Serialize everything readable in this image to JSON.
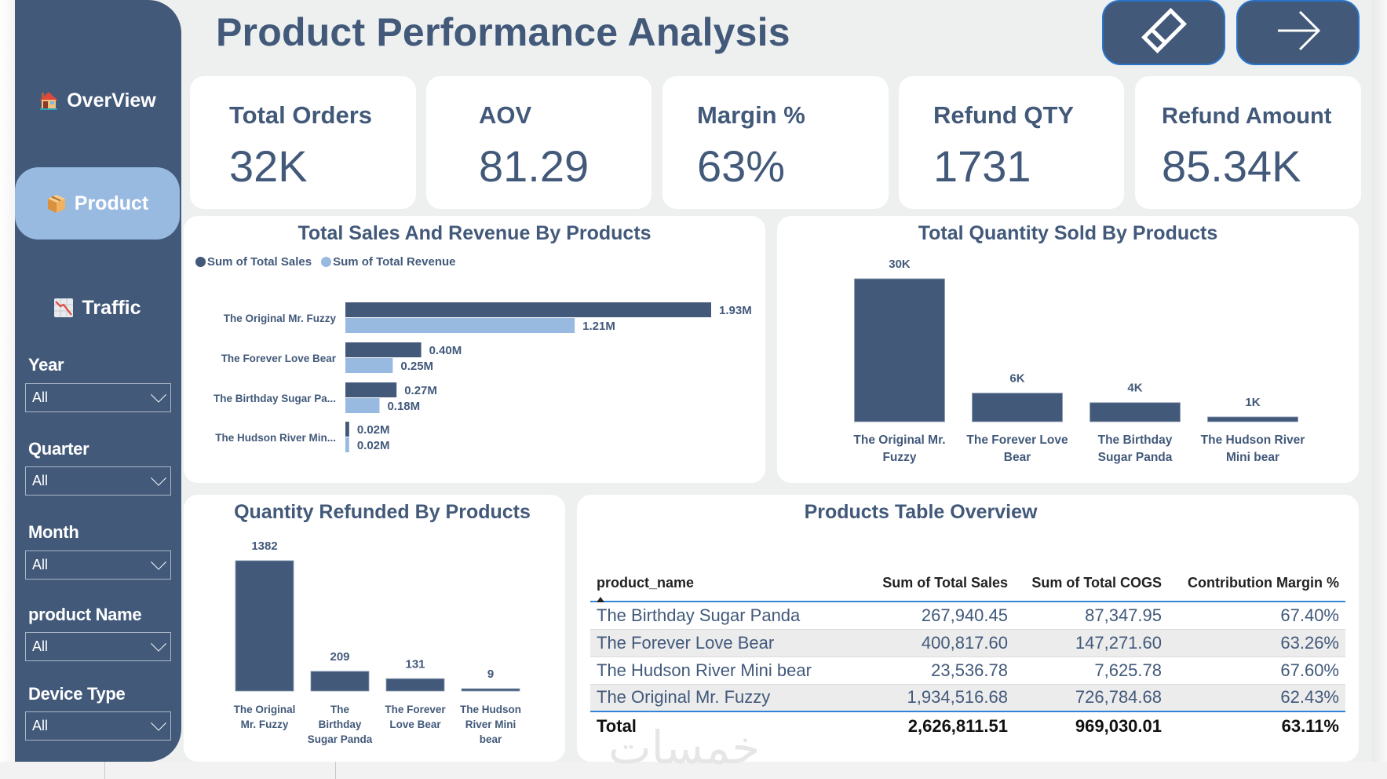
{
  "page": {
    "title": "Product Performance Analysis",
    "watermark": "خمسات"
  },
  "colors": {
    "primary": "#42597a",
    "accent_light": "#98b9e0",
    "background": "#eef0f0",
    "table_rule": "#2f86d8"
  },
  "toolbar": {
    "clear_filters_icon": "eraser-icon",
    "next_page_icon": "arrow-right-icon"
  },
  "sidebar": {
    "nav": [
      {
        "label": "OverView",
        "icon": "house-icon",
        "active": false
      },
      {
        "label": "Product",
        "icon": "package-icon",
        "active": true
      },
      {
        "label": "Traffic",
        "icon": "chart-decreasing-icon",
        "active": false
      }
    ],
    "filters": [
      {
        "label": "Year",
        "value": "All"
      },
      {
        "label": "Quarter",
        "value": "All"
      },
      {
        "label": "Month",
        "value": "All"
      },
      {
        "label": "product Name",
        "value": "All"
      },
      {
        "label": "Device Type",
        "value": "All"
      }
    ]
  },
  "kpis": [
    {
      "label": "Total Orders",
      "value": "32K"
    },
    {
      "label": "AOV",
      "value": "81.29"
    },
    {
      "label": "Margin %",
      "value": "63%"
    },
    {
      "label": "Refund QTY",
      "value": "1731"
    },
    {
      "label": "Refund Amount",
      "value": "85.34K"
    }
  ],
  "chart_data": [
    {
      "id": "sales_revenue",
      "type": "bar",
      "orientation": "horizontal",
      "title": "Total Sales And Revenue By Products",
      "legend_position": "top-left",
      "categories": [
        "The Original Mr. Fuzzy",
        "The Forever Love Bear",
        "The Birthday Sugar Pa...",
        "The Hudson River Min..."
      ],
      "series": [
        {
          "name": "Sum of Total Sales",
          "color": "#42597a",
          "values": [
            1.93,
            0.4,
            0.27,
            0.02
          ],
          "labels": [
            "1.93M",
            "0.40M",
            "0.27M",
            "0.02M"
          ]
        },
        {
          "name": "Sum of Total Revenue",
          "color": "#98b9e0",
          "values": [
            1.21,
            0.25,
            0.18,
            0.02
          ],
          "labels": [
            "1.21M",
            "0.25M",
            "0.18M",
            "0.02M"
          ]
        }
      ],
      "unit": "M",
      "xlim": [
        0,
        1.93
      ]
    },
    {
      "id": "quantity_sold",
      "type": "bar",
      "title": "Total Quantity Sold By Products",
      "categories": [
        "The Original Mr. Fuzzy",
        "The Forever Love Bear",
        "The Birthday Sugar Panda",
        "The Hudson River Mini bear"
      ],
      "category_lines": [
        [
          "The Original Mr.",
          "Fuzzy"
        ],
        [
          "The Forever Love",
          "Bear"
        ],
        [
          "The Birthday",
          "Sugar Panda"
        ],
        [
          "The Hudson River",
          "Mini bear"
        ]
      ],
      "values": [
        30000,
        6000,
        4000,
        1000
      ],
      "labels": [
        "30K",
        "6K",
        "4K",
        "1K"
      ],
      "color": "#42597a",
      "ylim": [
        0,
        30000
      ]
    },
    {
      "id": "quantity_refunded",
      "type": "bar",
      "title": "Quantity Refunded By Products",
      "categories": [
        "The Original Mr. Fuzzy",
        "The Birthday Sugar Panda",
        "The Forever Love Bear",
        "The Hudson River Mini bear"
      ],
      "category_lines": [
        [
          "The Original",
          "Mr. Fuzzy"
        ],
        [
          "The",
          "Birthday",
          "Sugar Panda"
        ],
        [
          "The Forever",
          "Love Bear"
        ],
        [
          "The Hudson",
          "River Mini",
          "bear"
        ]
      ],
      "values": [
        1382,
        209,
        131,
        9
      ],
      "labels": [
        "1382",
        "209",
        "131",
        "9"
      ],
      "color": "#42597a",
      "ylim": [
        0,
        1382
      ]
    },
    {
      "id": "products_table",
      "type": "table",
      "title": "Products Table Overview",
      "columns": [
        "product_name",
        "Sum of Total Sales",
        "Sum of Total COGS",
        "Contribution Margin %"
      ],
      "sort": {
        "column": "product_name",
        "direction": "ascending"
      },
      "rows": [
        [
          "The Birthday Sugar Panda",
          "267,940.45",
          "87,347.95",
          "67.40%"
        ],
        [
          "The Forever Love Bear",
          "400,817.60",
          "147,271.60",
          "63.26%"
        ],
        [
          "The Hudson River Mini bear",
          "23,536.78",
          "7,625.78",
          "67.60%"
        ],
        [
          "The Original Mr. Fuzzy",
          "1,934,516.68",
          "726,784.68",
          "62.43%"
        ]
      ],
      "total": [
        "Total",
        "2,626,811.51",
        "969,030.01",
        "63.11%"
      ]
    }
  ]
}
